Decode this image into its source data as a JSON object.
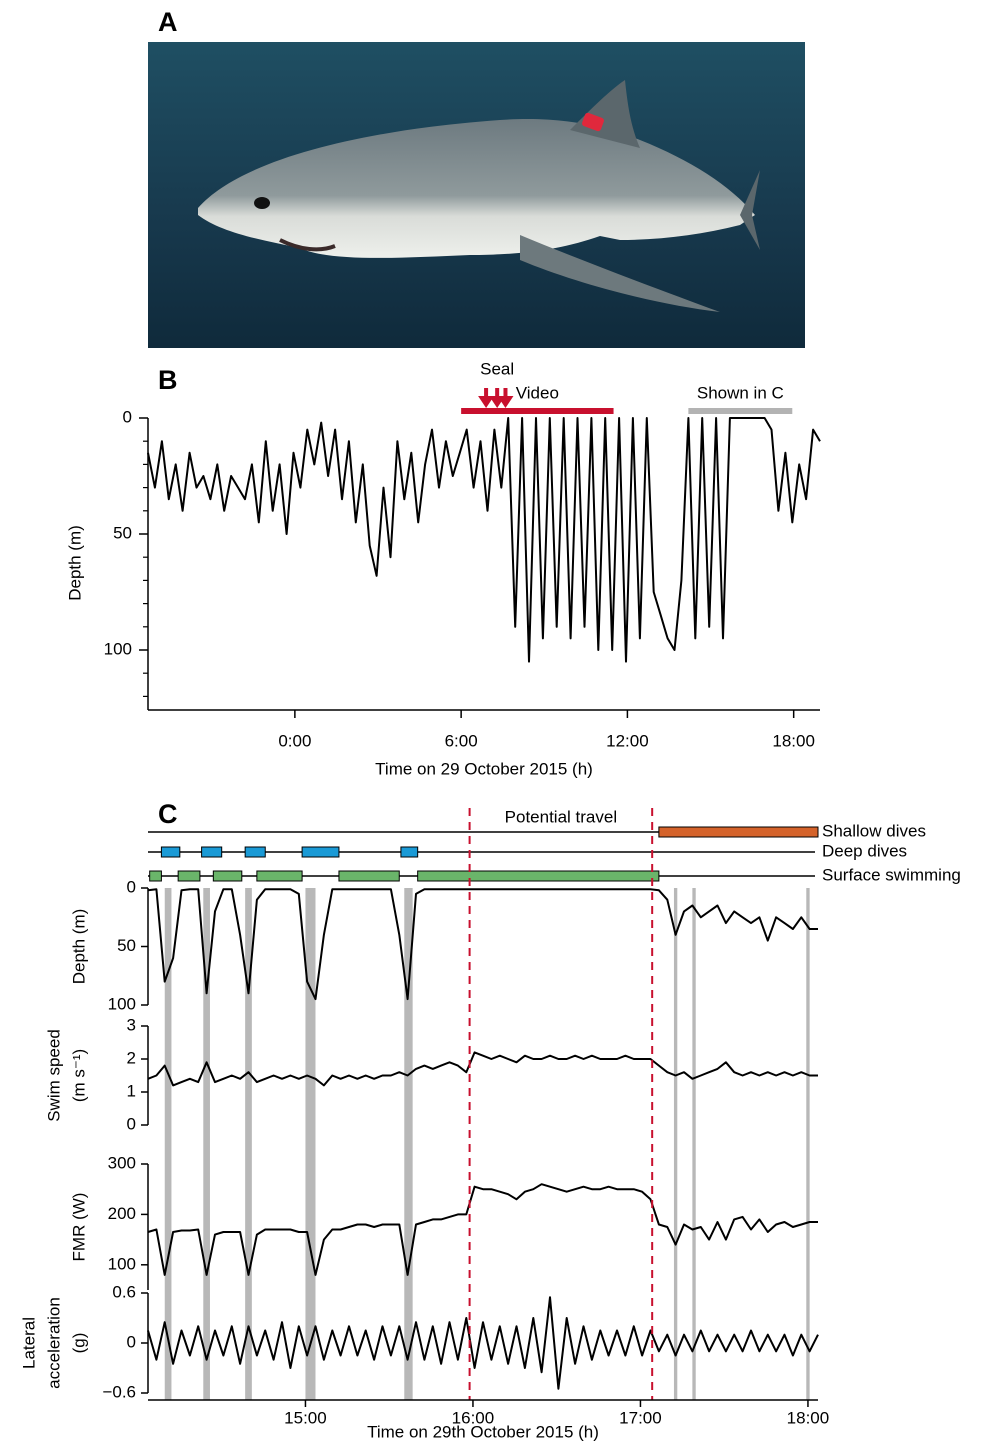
{
  "panel_labels": [
    "A",
    "B",
    "C"
  ],
  "chart_data": [
    {
      "type": "line",
      "xlabel": "Time on 29 October 2015 (h)",
      "ylabel": "Depth (m)",
      "x": [
        -5.3,
        -5.05,
        -4.8,
        -4.55,
        -4.3,
        -4.05,
        -3.8,
        -3.55,
        -3.3,
        -3.05,
        -2.8,
        -2.55,
        -2.3,
        -2.05,
        -1.8,
        -1.55,
        -1.3,
        -1.05,
        -0.8,
        -0.55,
        -0.3,
        -0.05,
        0.2,
        0.45,
        0.7,
        0.95,
        1.2,
        1.45,
        1.7,
        1.95,
        2.2,
        2.45,
        2.7,
        2.95,
        3.2,
        3.45,
        3.7,
        3.95,
        4.2,
        4.45,
        4.7,
        4.95,
        5.2,
        5.45,
        5.7,
        5.95,
        6.2,
        6.45,
        6.7,
        6.95,
        7.2,
        7.45,
        7.7,
        7.95,
        8.2,
        8.45,
        8.7,
        8.95,
        9.2,
        9.45,
        9.7,
        9.95,
        10.2,
        10.45,
        10.7,
        10.95,
        11.2,
        11.45,
        11.7,
        11.95,
        12.2,
        12.45,
        12.7,
        12.95,
        13.2,
        13.45,
        13.7,
        13.95,
        14.2,
        14.45,
        14.7,
        14.95,
        15.2,
        15.45,
        15.7,
        15.95,
        16.2,
        16.45,
        16.7,
        16.95,
        17.2,
        17.45,
        17.7,
        17.95,
        18.2,
        18.45,
        18.7,
        18.95
      ],
      "values": [
        15,
        30,
        10,
        35,
        20,
        40,
        15,
        30,
        25,
        35,
        20,
        40,
        25,
        30,
        35,
        20,
        45,
        10,
        40,
        20,
        50,
        15,
        30,
        5,
        20,
        2,
        25,
        5,
        35,
        10,
        45,
        20,
        55,
        68,
        30,
        60,
        10,
        35,
        15,
        45,
        20,
        5,
        30,
        10,
        25,
        15,
        5,
        30,
        10,
        40,
        5,
        30,
        0,
        90,
        0,
        105,
        0,
        95,
        0,
        90,
        0,
        95,
        0,
        90,
        0,
        100,
        0,
        100,
        0,
        105,
        0,
        95,
        0,
        75,
        85,
        95,
        100,
        70,
        0,
        95,
        0,
        90,
        0,
        95,
        0,
        0,
        0,
        0,
        0,
        0,
        5,
        40,
        15,
        45,
        20,
        35,
        5,
        10
      ],
      "color": "#000000",
      "xlim": [
        -5.3,
        18.95
      ],
      "ylim": [
        0,
        125
      ],
      "y_inverted": true,
      "xticks": [
        {
          "value": 0,
          "label": "0:00"
        },
        {
          "value": 6,
          "label": "6:00"
        },
        {
          "value": 12,
          "label": "12:00"
        },
        {
          "value": 18,
          "label": "18:00"
        }
      ],
      "yticks": [
        0,
        50,
        100
      ],
      "yminorticks": [
        10,
        20,
        30,
        40,
        60,
        70,
        80,
        90,
        110,
        120
      ],
      "annotations": [
        {
          "text": "Seal",
          "x": [
            6.9,
            7.3,
            7.6
          ],
          "color": "#c8102e",
          "label_color": "#c8102e"
        },
        {
          "text": "Video",
          "start": 6,
          "end": 11.5,
          "color": "#c8102e",
          "label_color": "#c8102e"
        },
        {
          "text": "Shown in C",
          "start": 14.2,
          "end": 17.95,
          "color": "#b3b3b3",
          "label_color": "#000000"
        }
      ]
    },
    {
      "type": "stacked-line",
      "xlabel": "Time on 29th October 2015 (h)",
      "color": "#000000",
      "x": [
        14.06,
        14.11,
        14.16,
        14.21,
        14.26,
        14.31,
        14.36,
        14.41,
        14.46,
        14.51,
        14.56,
        14.61,
        14.66,
        14.71,
        14.76,
        14.81,
        14.86,
        14.91,
        14.96,
        15.01,
        15.06,
        15.11,
        15.16,
        15.21,
        15.26,
        15.31,
        15.36,
        15.41,
        15.46,
        15.51,
        15.56,
        15.61,
        15.66,
        15.71,
        15.76,
        15.81,
        15.86,
        15.91,
        15.96,
        16.01,
        16.06,
        16.11,
        16.16,
        16.21,
        16.26,
        16.31,
        16.36,
        16.41,
        16.46,
        16.51,
        16.56,
        16.61,
        16.66,
        16.71,
        16.76,
        16.81,
        16.86,
        16.91,
        16.96,
        17.01,
        17.06,
        17.11,
        17.16,
        17.21,
        17.26,
        17.31,
        17.36,
        17.41,
        17.46,
        17.51,
        17.56,
        17.61,
        17.66,
        17.71,
        17.76,
        17.81,
        17.86,
        17.91,
        17.96,
        18.01,
        18.06
      ],
      "xlim": [
        14.06,
        18.06
      ],
      "xticks": [
        {
          "value": 15,
          "label": "15:00"
        },
        {
          "value": 16,
          "label": "16:00"
        },
        {
          "value": 17,
          "label": "17:00"
        },
        {
          "value": 18,
          "label": "18:00"
        }
      ],
      "behaviors": [
        {
          "name": "Shallow dives",
          "color": "#d4622a",
          "intervals": [
            [
              17.11,
              18.06
            ]
          ]
        },
        {
          "name": "Deep dives",
          "color": "#1a9ad6",
          "intervals": [
            [
              14.14,
              14.25
            ],
            [
              14.38,
              14.5
            ],
            [
              14.64,
              14.76
            ],
            [
              14.98,
              15.2
            ],
            [
              15.57,
              15.67
            ]
          ]
        },
        {
          "name": "Surface swimming",
          "color": "#6ab56a",
          "intervals": [
            [
              14.07,
              14.14
            ],
            [
              14.24,
              14.37
            ],
            [
              14.45,
              14.62
            ],
            [
              14.71,
              14.98
            ],
            [
              15.2,
              15.56
            ],
            [
              15.67,
              17.11
            ]
          ]
        }
      ],
      "travel": {
        "label": "Potential travel",
        "x": [
          15.98,
          17.07
        ],
        "color": "#c8102e"
      },
      "shading": {
        "color": "#b8b8b8",
        "intervals": [
          [
            14.16,
            14.2
          ],
          [
            14.39,
            14.43
          ],
          [
            14.64,
            14.68
          ],
          [
            15.0,
            15.06
          ],
          [
            15.59,
            15.64
          ],
          [
            17.2,
            17.22
          ],
          [
            17.31,
            17.33
          ],
          [
            17.99,
            18.01
          ]
        ]
      },
      "panels": [
        {
          "ylabel": [
            "Depth (m)"
          ],
          "ylim": [
            0,
            100
          ],
          "yticks": [
            0,
            50,
            100
          ],
          "y_inverted": true,
          "values": [
            2,
            1,
            80,
            60,
            2,
            1,
            1,
            90,
            20,
            1,
            1,
            40,
            90,
            10,
            1,
            1,
            1,
            1,
            5,
            80,
            95,
            40,
            1,
            1,
            1,
            1,
            1,
            1,
            1,
            1,
            40,
            95,
            5,
            1,
            1,
            1,
            1,
            1,
            1,
            1,
            1,
            1,
            1,
            1,
            1,
            1,
            1,
            1,
            1,
            1,
            1,
            1,
            1,
            1,
            1,
            1,
            1,
            1,
            1,
            1,
            1,
            2,
            10,
            40,
            20,
            15,
            25,
            20,
            15,
            30,
            20,
            25,
            30,
            25,
            45,
            25,
            30,
            35,
            25,
            35,
            35
          ]
        },
        {
          "ylabel": [
            "Swim speed",
            "(m s⁻¹)"
          ],
          "ylim": [
            0,
            3
          ],
          "yticks": [
            0,
            1,
            2,
            3
          ],
          "y_inverted": false,
          "values": [
            1.4,
            1.5,
            1.8,
            1.2,
            1.3,
            1.4,
            1.3,
            1.9,
            1.3,
            1.4,
            1.5,
            1.4,
            1.6,
            1.3,
            1.4,
            1.5,
            1.4,
            1.5,
            1.4,
            1.5,
            1.4,
            1.2,
            1.5,
            1.4,
            1.5,
            1.4,
            1.5,
            1.4,
            1.5,
            1.5,
            1.6,
            1.5,
            1.7,
            1.8,
            1.7,
            1.8,
            1.9,
            1.8,
            1.6,
            2.2,
            2.1,
            2,
            2.1,
            2,
            1.9,
            2.1,
            2,
            2,
            2.1,
            2,
            2,
            2.1,
            2,
            2.1,
            2,
            2,
            2,
            2.1,
            2,
            2,
            2,
            1.8,
            1.6,
            1.5,
            1.6,
            1.4,
            1.5,
            1.6,
            1.7,
            1.9,
            1.6,
            1.5,
            1.6,
            1.5,
            1.6,
            1.5,
            1.6,
            1.5,
            1.6,
            1.5,
            1.5
          ]
        },
        {
          "ylabel": [
            "FMR (W)"
          ],
          "ylim": [
            50,
            300
          ],
          "yticks": [
            100,
            200,
            300
          ],
          "y_inverted": false,
          "values": [
            165,
            170,
            80,
            165,
            168,
            168,
            170,
            80,
            160,
            165,
            165,
            165,
            80,
            160,
            170,
            170,
            170,
            170,
            165,
            165,
            80,
            150,
            170,
            170,
            175,
            180,
            180,
            175,
            180,
            180,
            180,
            80,
            180,
            185,
            190,
            190,
            195,
            200,
            200,
            255,
            250,
            250,
            245,
            240,
            230,
            245,
            250,
            260,
            255,
            250,
            245,
            250,
            255,
            250,
            250,
            255,
            250,
            250,
            250,
            245,
            230,
            180,
            175,
            140,
            180,
            170,
            175,
            150,
            185,
            150,
            190,
            195,
            170,
            190,
            165,
            180,
            185,
            175,
            180,
            185,
            185
          ]
        },
        {
          "ylabel": [
            "Lateral",
            "acceleration",
            "(g)"
          ],
          "ylim": [
            -0.6,
            0.6
          ],
          "yticks": [
            0.6,
            0,
            {
              "value": -0.6,
              "label": "−0.6"
            }
          ],
          "y_inverted": false,
          "values": [
            0.15,
            -0.2,
            0.25,
            -0.25,
            0.15,
            -0.15,
            0.2,
            -0.2,
            0.15,
            -0.15,
            0.2,
            -0.25,
            0.2,
            -0.15,
            0.15,
            -0.2,
            0.25,
            -0.3,
            0.2,
            -0.15,
            0.2,
            -0.2,
            0.15,
            -0.15,
            0.2,
            -0.15,
            0.15,
            -0.2,
            0.2,
            -0.15,
            0.2,
            -0.2,
            0.25,
            -0.2,
            0.2,
            -0.25,
            0.25,
            -0.2,
            0.3,
            -0.3,
            0.25,
            -0.2,
            0.2,
            -0.25,
            0.2,
            -0.3,
            0.3,
            -0.35,
            0.55,
            -0.55,
            0.3,
            -0.25,
            0.2,
            -0.2,
            0.15,
            -0.15,
            0.15,
            -0.15,
            0.2,
            -0.15,
            0.15,
            -0.1,
            0.1,
            -0.15,
            0.1,
            -0.1,
            0.15,
            -0.1,
            0.1,
            -0.1,
            0.1,
            -0.1,
            0.15,
            -0.1,
            0.1,
            -0.1,
            0.1,
            -0.15,
            0.1,
            -0.1,
            0.1
          ]
        }
      ]
    }
  ]
}
